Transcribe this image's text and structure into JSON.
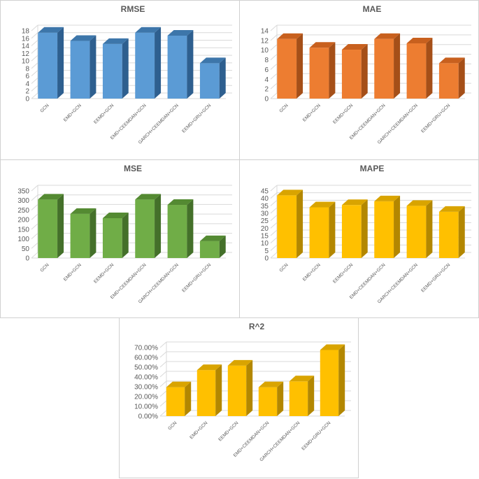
{
  "chart_data": [
    {
      "type": "bar",
      "title": "RMSE",
      "categories": [
        "GCN",
        "EMD+GCN",
        "EEMD+GCN",
        "EMD+CEEMDAN+GCN",
        "GARCH+CEEMDAN+GCN",
        "EEMD+GRU+GCN"
      ],
      "values": [
        17.5,
        15.3,
        14.5,
        17.5,
        16.7,
        9.4
      ],
      "ylim": [
        0,
        18
      ],
      "yticks": [
        0,
        2,
        4,
        6,
        8,
        10,
        12,
        14,
        16,
        18
      ],
      "grid": true,
      "legend": "none",
      "colors": {
        "front": "#5b9bd5",
        "top": "#3d76aa",
        "side": "#2e5f8f"
      }
    },
    {
      "type": "bar",
      "title": "MAE",
      "categories": [
        "GCN",
        "EMD+GCN",
        "EEMD+GCN",
        "EMD+CEEMDAN+GCN",
        "GARCH+CEEMDAN+GCN",
        "EEMD+GRU+GCN"
      ],
      "values": [
        12.3,
        10.5,
        10.1,
        12.3,
        11.4,
        7.3
      ],
      "ylim": [
        0,
        14
      ],
      "yticks": [
        0,
        2,
        4,
        6,
        8,
        10,
        12,
        14
      ],
      "grid": true,
      "legend": "none",
      "colors": {
        "front": "#ed7d31",
        "top": "#c8601e",
        "side": "#a54f18"
      }
    },
    {
      "type": "bar",
      "title": "MSE",
      "categories": [
        "GCN",
        "EMD+GCN",
        "EEMD+GCN",
        "EMD+CEEMDAN+GCN",
        "GARCH+CEEMDAN+GCN",
        "EEMD+GRU+GCN"
      ],
      "values": [
        305,
        230,
        208,
        305,
        277,
        88
      ],
      "ylim": [
        0,
        350
      ],
      "yticks": [
        0,
        50,
        100,
        150,
        200,
        250,
        300,
        350
      ],
      "grid": true,
      "legend": "none",
      "colors": {
        "front": "#70ad47",
        "top": "#548a32",
        "side": "#44702a"
      }
    },
    {
      "type": "bar",
      "title": "MAPE",
      "categories": [
        "GCN",
        "EMD+GCN",
        "EEMD+GCN",
        "EMD+CEEMDAN+GCN",
        "GARCH+CEEMDAN+GCN",
        "EEMD+GRU+GCN"
      ],
      "values": [
        42,
        34,
        35.5,
        38,
        35,
        31
      ],
      "ylim": [
        0,
        45
      ],
      "yticks": [
        0,
        5,
        10,
        15,
        20,
        25,
        30,
        35,
        40,
        45
      ],
      "grid": true,
      "legend": "none",
      "colors": {
        "front": "#ffc000",
        "top": "#d9a400",
        "side": "#b38700"
      }
    },
    {
      "type": "bar",
      "title": "R^2",
      "categories": [
        "GCN",
        "EMD+GCN",
        "EEMD+GCN",
        "EMD+CEEMDAN+GCN",
        "GARCH+CEEMDAN+GCN",
        "EEMD+GRU+GCN"
      ],
      "values": [
        29.5,
        47,
        51.5,
        29.5,
        35.5,
        67.5
      ],
      "ylim": [
        0,
        70
      ],
      "yticks": [
        0,
        10,
        20,
        30,
        40,
        50,
        60,
        70
      ],
      "ytick_suffix": ".00%",
      "grid": true,
      "legend": "none",
      "colors": {
        "front": "#ffc000",
        "top": "#d9a400",
        "side": "#b38700"
      }
    }
  ]
}
